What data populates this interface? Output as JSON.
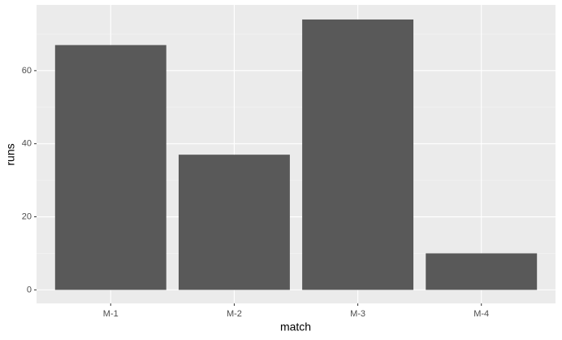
{
  "chart_data": {
    "type": "bar",
    "xlabel": "match",
    "ylabel": "runs",
    "categories": [
      "M-1",
      "M-2",
      "M-3",
      "M-4"
    ],
    "values": [
      67,
      37,
      74,
      10
    ],
    "color": "#595959",
    "ylim": [
      -3.7,
      78
    ],
    "yticks": [
      0,
      20,
      40,
      60
    ],
    "yminorticks": [
      10,
      30,
      50,
      70
    ],
    "grid": true
  }
}
